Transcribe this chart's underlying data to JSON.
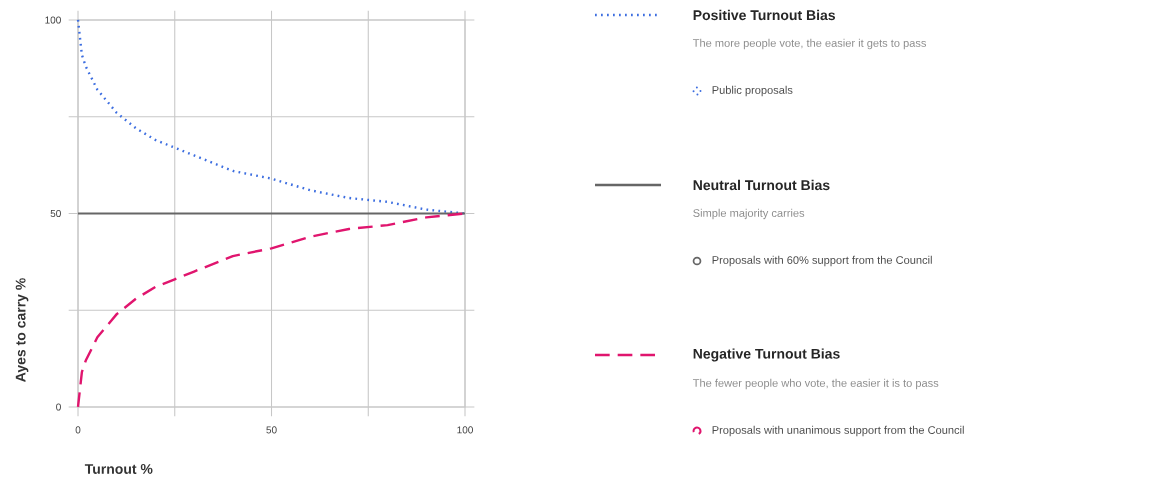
{
  "chart_data": {
    "type": "line",
    "xlabel": "Turnout %",
    "ylabel": "Ayes to carry %",
    "x": [
      0,
      1,
      2,
      5,
      10,
      15,
      20,
      25,
      30,
      40,
      50,
      60,
      70,
      80,
      90,
      100
    ],
    "series": [
      {
        "name": "Positive Turnout Bias",
        "color": "#3d6ee0",
        "line_style": "dotted",
        "values": [
          100,
          91,
          88,
          82,
          76,
          72,
          69,
          67,
          65,
          61,
          59,
          56,
          54,
          53,
          51,
          50
        ]
      },
      {
        "name": "Neutral Turnout Bias",
        "color": "#666666",
        "line_style": "solid",
        "values": [
          50,
          50,
          50,
          50,
          50,
          50,
          50,
          50,
          50,
          50,
          50,
          50,
          50,
          50,
          50,
          50
        ]
      },
      {
        "name": "Negative Turnout Bias",
        "color": "#e0156e",
        "line_style": "dashed",
        "values": [
          0,
          9,
          12,
          18,
          24,
          28,
          31,
          33,
          35,
          39,
          41,
          44,
          46,
          47,
          49,
          50
        ]
      }
    ],
    "annotations": [
      "The more people vote, the easier it gets to pass",
      "Public proposals",
      "Simple majority carries",
      "Proposals with 60% support from the Council",
      "The fewer people who vote, the easier it is to pass",
      "Proposals with unanimous support from the Council"
    ],
    "xlim": [
      0,
      100
    ],
    "ylim": [
      0,
      100
    ],
    "xticks": [
      0,
      {
        "value": 25,
        "label": null
      },
      50,
      {
        "value": 75,
        "label": null
      },
      100
    ],
    "yticks": [
      0,
      {
        "value": 25,
        "label": null
      },
      50,
      {
        "value": 75,
        "label": null
      },
      100
    ],
    "grid": true,
    "legend": "right"
  }
}
